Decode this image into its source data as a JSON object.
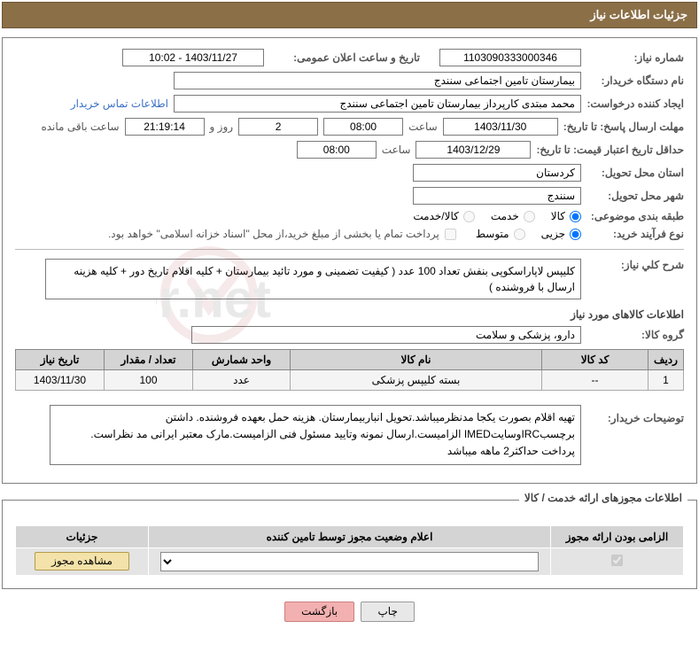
{
  "titleBar": "جزئیات اطلاعات نیاز",
  "labels": {
    "needNumber": "شماره نیاز:",
    "announceDateTime": "تاریخ و ساعت اعلان عمومی:",
    "buyerOrg": "نام دستگاه خریدار:",
    "requester": "ایجاد کننده درخواست:",
    "buyerContactLink": "اطلاعات تماس خریدار",
    "replyDeadline": "مهلت ارسال پاسخ: تا تاریخ:",
    "priceValidity": "حداقل تاریخ اعتبار قیمت: تا تاریخ:",
    "hour": "ساعت",
    "dayAnd": "روز و",
    "remaining": "ساعت باقی مانده",
    "deliveryProvince": "استان محل تحویل:",
    "deliveryCity": "شهر محل تحویل:",
    "category": "طبقه بندی موضوعی:",
    "cat_goods": "کالا",
    "cat_service": "خدمت",
    "cat_goods_service": "کالا/خدمت",
    "buyProcess": "نوع فرآیند خرید:",
    "proc_minor": "جزیی",
    "proc_medium": "متوسط",
    "paymentNote": "پرداخت تمام یا بخشی از مبلغ خرید،از محل \"اسناد خزانه اسلامی\" خواهد بود.",
    "generalDesc": "شرح کلي نياز:",
    "goodsInfoHeader": "اطلاعات کالاهای مورد نياز",
    "goodsGroup": "گروه کالا:",
    "buyerNotes": "توضیحات خریدار:",
    "permitsHeader": "اطلاعات مجوزهای ارائه خدمت / کالا"
  },
  "values": {
    "needNumber": "1103090333000346",
    "announceDateTime": "1403/11/27 - 10:02",
    "buyerOrg": "بیمارستان تامین اجتماعی سنندج",
    "requester": "محمد مبتدی کارپرداز بیمارستان تامین اجتماعی سنندج",
    "replyDate": "1403/11/30",
    "replyTime": "08:00",
    "remainingDays": "2",
    "remainingTime": "21:19:14",
    "priceValidityDate": "1403/12/29",
    "priceValidityTime": "08:00",
    "deliveryProvince": "کردستان",
    "deliveryCity": "سنندج",
    "generalDesc": "کلیپس لاپاراسکوپی بنفش تعداد 100 عدد ( کیفیت تضمینی و مورد تائید بیمارستان + کلیه اقلام تاریخ دور + کلیه هزینه ارسال با فروشنده )",
    "goodsGroup": "دارو، پزشکی و سلامت",
    "buyerNotes": "تهیه اقلام بصورت یکجا مدنظرمیباشد.تحویل انباربیمارستان. هزینه حمل بعهده فروشنده. داشتن برچسبIRCوسایتIMED الزامیست.ارسال نمونه وتایید مسئول فنی الزامیست.مارک معتبر ایرانی مد نظراست. پرداخت حداکثر2 ماهه میباشد"
  },
  "goodsTable": {
    "headers": {
      "row": "ردیف",
      "code": "کد کالا",
      "name": "نام کالا",
      "unit": "واحد شمارش",
      "qty": "تعداد / مقدار",
      "needDate": "تاریخ نیاز"
    },
    "rows": [
      {
        "row": "1",
        "code": "--",
        "name": "بسته کلیپس پزشکی",
        "unit": "عدد",
        "qty": "100",
        "needDate": "1403/11/30"
      }
    ]
  },
  "permitTable": {
    "headers": {
      "mandatory": "الزامی بودن ارائه مجوز",
      "status": "اعلام وضعیت مجوز توسط تامین کننده",
      "details": "جزئیات"
    },
    "viewPermit": "مشاهده مجوز"
  },
  "buttons": {
    "print": "چاپ",
    "back": "بازگشت"
  }
}
